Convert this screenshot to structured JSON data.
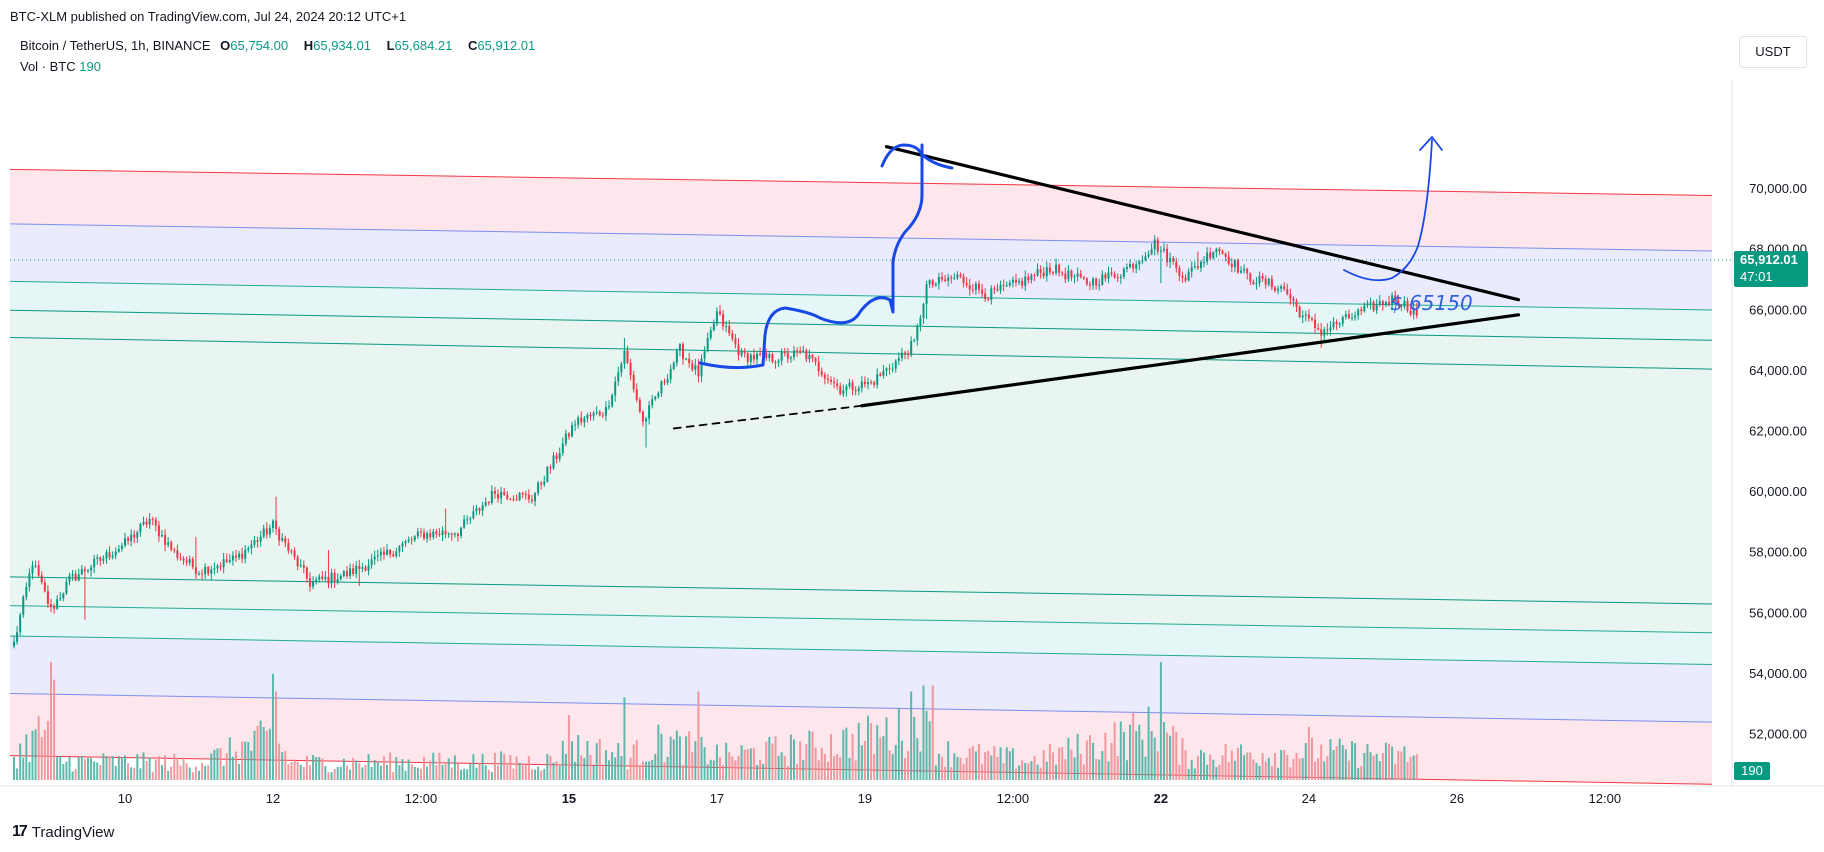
{
  "header": {
    "published": "BTC-XLM published on TradingView.com, Jul 24, 2024 20:12 UTC+1",
    "symbol": "Bitcoin / TetherUS, 1h, BINANCE",
    "o_label": "O",
    "o": "65,754.00",
    "h_label": "H",
    "h": "65,934.01",
    "l_label": "L",
    "l": "65,684.21",
    "c_label": "C",
    "c": "65,912.01",
    "vol_label": "Vol · BTC",
    "vol": "190"
  },
  "currency_button": "USDT",
  "last_price": {
    "price": "65,912.01",
    "countdown": "47:01"
  },
  "volume_tag": "190",
  "annotation": "$ 65150",
  "branding": "TradingView",
  "colors": {
    "up": "#089981",
    "down": "#f23645",
    "drawing_blue": "#1848e8",
    "trend": "#000000",
    "zone_pink": "#fde3ea",
    "zone_lavender": "#e6e8fb",
    "zone_cyan": "#dff5f4",
    "zone_green": "#e4f3ee"
  },
  "chart_data": {
    "type": "candlestick",
    "symbol": "BTCUSDT",
    "interval": "1h",
    "ylim": [
      50300,
      73600
    ],
    "y_ticks": [
      "52,000.00",
      "54,000.00",
      "56,000.00",
      "58,000.00",
      "60,000.00",
      "62,000.00",
      "64,000.00",
      "66,000.00",
      "68,000.00",
      "70,000.00"
    ],
    "y_tick_values": [
      52000,
      54000,
      56000,
      58000,
      60000,
      62000,
      64000,
      66000,
      68000,
      70000
    ],
    "x_ticks": [
      "10",
      "12",
      "12:00",
      "15",
      "17",
      "19",
      "12:00",
      "22",
      "24",
      "26",
      "12:00"
    ],
    "x_tick_bold": [
      false,
      false,
      false,
      true,
      false,
      false,
      false,
      true,
      false,
      false,
      false
    ],
    "x_tick_index": [
      36,
      84,
      132,
      180,
      228,
      276,
      324,
      372,
      420,
      468,
      516
    ],
    "anchors": [
      [
        0,
        55000
      ],
      [
        6,
        57700
      ],
      [
        12,
        56100
      ],
      [
        18,
        57100
      ],
      [
        24,
        57500
      ],
      [
        36,
        58300
      ],
      [
        44,
        59100
      ],
      [
        52,
        58000
      ],
      [
        60,
        57400
      ],
      [
        72,
        57800
      ],
      [
        84,
        58900
      ],
      [
        96,
        57000
      ],
      [
        108,
        57300
      ],
      [
        120,
        57900
      ],
      [
        132,
        58600
      ],
      [
        144,
        58700
      ],
      [
        156,
        60000
      ],
      [
        168,
        59800
      ],
      [
        176,
        61200
      ],
      [
        182,
        62300
      ],
      [
        192,
        62700
      ],
      [
        198,
        64600
      ],
      [
        204,
        62300
      ],
      [
        210,
        63500
      ],
      [
        216,
        64700
      ],
      [
        222,
        63900
      ],
      [
        228,
        65900
      ],
      [
        236,
        64500
      ],
      [
        246,
        64400
      ],
      [
        256,
        64600
      ],
      [
        268,
        63400
      ],
      [
        278,
        63600
      ],
      [
        286,
        64300
      ],
      [
        292,
        64900
      ],
      [
        296,
        66800
      ],
      [
        306,
        67100
      ],
      [
        316,
        66500
      ],
      [
        326,
        66900
      ],
      [
        336,
        67400
      ],
      [
        348,
        66900
      ],
      [
        358,
        67200
      ],
      [
        364,
        67600
      ],
      [
        370,
        68200
      ],
      [
        380,
        67100
      ],
      [
        390,
        68100
      ],
      [
        400,
        67100
      ],
      [
        412,
        66700
      ],
      [
        418,
        65800
      ],
      [
        424,
        65300
      ],
      [
        432,
        65700
      ],
      [
        440,
        66100
      ],
      [
        448,
        66400
      ],
      [
        455,
        65900
      ]
    ],
    "spikes": [
      [
        23,
        -1500
      ],
      [
        59,
        800
      ],
      [
        85,
        600
      ],
      [
        102,
        700
      ],
      [
        112,
        -500
      ],
      [
        140,
        600
      ],
      [
        198,
        300
      ],
      [
        205,
        -700
      ],
      [
        296,
        -400
      ],
      [
        372,
        -1000
      ],
      [
        384,
        300
      ],
      [
        424,
        -300
      ]
    ],
    "candle_count": 456,
    "volume_anchors": [
      [
        0,
        0.25
      ],
      [
        12,
        0.6
      ],
      [
        14,
        0.2
      ],
      [
        60,
        0.18
      ],
      [
        84,
        0.45
      ],
      [
        90,
        0.18
      ],
      [
        175,
        0.2
      ],
      [
        180,
        0.35
      ],
      [
        200,
        0.25
      ],
      [
        210,
        0.4
      ],
      [
        230,
        0.25
      ],
      [
        260,
        0.35
      ],
      [
        295,
        0.55
      ],
      [
        300,
        0.3
      ],
      [
        330,
        0.2
      ],
      [
        372,
        0.55
      ],
      [
        380,
        0.25
      ],
      [
        420,
        0.3
      ],
      [
        455,
        0.25
      ]
    ],
    "volume_spikes": [
      [
        12,
        1.0
      ],
      [
        13,
        0.85
      ],
      [
        84,
        0.9
      ],
      [
        85,
        0.75
      ],
      [
        180,
        0.55
      ],
      [
        198,
        0.7
      ],
      [
        222,
        0.75
      ],
      [
        291,
        0.75
      ],
      [
        295,
        0.8
      ],
      [
        298,
        0.8
      ],
      [
        372,
        1.0
      ],
      [
        420,
        0.45
      ]
    ],
    "channel_lines": [
      {
        "color": "#f23645",
        "start": [
          0,
          70650
        ],
        "end": [
          556,
          69780
        ]
      },
      {
        "color": "#7d8ef0",
        "start": [
          0,
          68850
        ],
        "end": [
          556,
          67950
        ]
      },
      {
        "color": "#22ab94",
        "start": [
          0,
          66950
        ],
        "end": [
          556,
          66000
        ]
      },
      {
        "color": "#089981",
        "start": [
          0,
          66000
        ],
        "end": [
          556,
          65000
        ]
      },
      {
        "color": "#089981",
        "start": [
          0,
          65100
        ],
        "end": [
          556,
          64050
        ]
      },
      {
        "color": "#089981",
        "start": [
          0,
          57200
        ],
        "end": [
          556,
          56300
        ]
      },
      {
        "color": "#22ab94",
        "start": [
          0,
          56250
        ],
        "end": [
          556,
          55350
        ]
      },
      {
        "color": "#22ab94",
        "start": [
          0,
          55250
        ],
        "end": [
          556,
          54300
        ]
      },
      {
        "color": "#7d8ef0",
        "start": [
          0,
          53350
        ],
        "end": [
          556,
          52400
        ]
      },
      {
        "color": "#f23645",
        "start": [
          0,
          51300
        ],
        "end": [
          556,
          50350
        ]
      }
    ],
    "trendlines": [
      {
        "style": "solid",
        "start": [
          283,
          71400
        ],
        "end": [
          488,
          66350
        ]
      },
      {
        "style": "solid",
        "start": [
          275,
          62850
        ],
        "end": [
          488,
          65850
        ]
      },
      {
        "style": "dashed",
        "start": [
          214,
          62100
        ],
        "end": [
          275,
          62850
        ]
      }
    ]
  }
}
